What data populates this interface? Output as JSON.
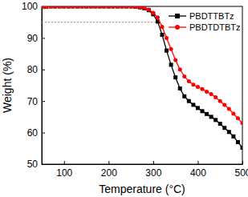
{
  "chart_data": {
    "type": "line",
    "x_label": "Temperature (°C)",
    "y_label": "Weight (%)",
    "x": [
      50,
      60,
      70,
      80,
      90,
      100,
      110,
      120,
      130,
      140,
      150,
      160,
      170,
      180,
      190,
      200,
      210,
      220,
      230,
      240,
      250,
      260,
      270,
      280,
      290,
      300,
      310,
      320,
      330,
      340,
      350,
      360,
      370,
      380,
      390,
      400,
      410,
      420,
      430,
      440,
      450,
      460,
      470,
      480,
      490,
      500
    ],
    "series": [
      {
        "name": "PBDTTBTz",
        "color": "#000000",
        "marker": "square",
        "values": [
          99.8,
          99.9,
          100,
          100,
          100,
          100,
          100,
          100,
          100,
          100,
          100,
          100,
          100,
          100,
          100,
          100,
          100,
          100,
          100,
          100,
          100,
          99.9,
          99.7,
          99.4,
          98.8,
          97.5,
          95.2,
          91.0,
          86.0,
          81.5,
          77.5,
          74.0,
          71.5,
          70.0,
          68.8,
          67.8,
          66.8,
          65.9,
          65.0,
          64.0,
          62.8,
          61.5,
          60.2,
          58.8,
          57.0,
          55.2
        ]
      },
      {
        "name": "PBDTDTBTz",
        "color": "#ff0000",
        "marker": "circle",
        "values": [
          99.8,
          99.9,
          100,
          100,
          100,
          100,
          100,
          100,
          100,
          100,
          100,
          100,
          100,
          100,
          100,
          100,
          100,
          100,
          100,
          100,
          100,
          99.9,
          99.8,
          99.5,
          99.0,
          98.0,
          96.5,
          93.5,
          90.0,
          86.5,
          83.0,
          80.0,
          77.8,
          76.3,
          75.2,
          74.5,
          73.8,
          73.0,
          72.2,
          71.2,
          70.0,
          68.8,
          67.5,
          66.0,
          64.5,
          63.0
        ]
      }
    ],
    "hline": 95,
    "xlim": [
      50,
      500
    ],
    "xticks": [
      100,
      200,
      300,
      400,
      500
    ],
    "ylim": [
      50,
      100
    ],
    "yticks": [
      50,
      60,
      70,
      80,
      90,
      100
    ],
    "legend": "upper right",
    "grid": false
  }
}
